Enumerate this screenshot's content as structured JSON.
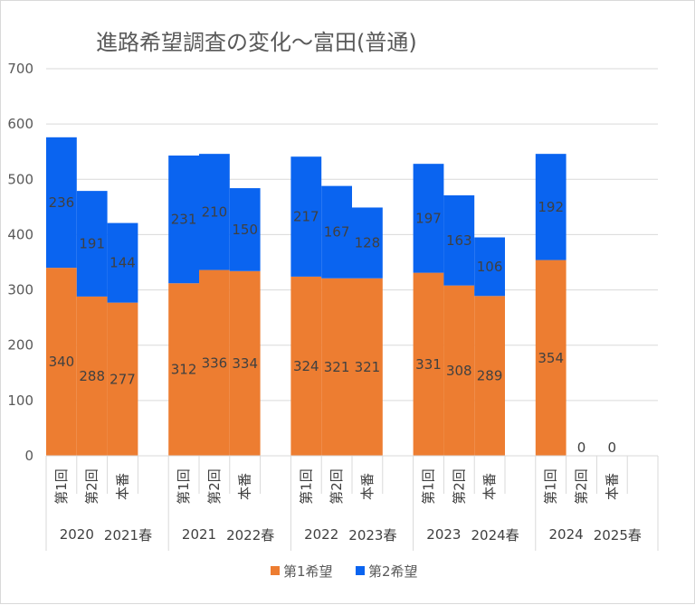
{
  "chart_data": {
    "type": "bar",
    "stacked": true,
    "title": "進路希望調査の変化～富田(普通)",
    "xlabel": "",
    "ylabel": "",
    "ylim": [
      0,
      700
    ],
    "yticks": [
      0,
      100,
      200,
      300,
      400,
      500,
      600,
      700
    ],
    "grid": true,
    "legend_position": "bottom",
    "groups": [
      {
        "year": "2020",
        "spring": "2021春"
      },
      {
        "year": "2021",
        "spring": "2022春"
      },
      {
        "year": "2022",
        "spring": "2023春"
      },
      {
        "year": "2023",
        "spring": "2024春"
      },
      {
        "year": "2024",
        "spring": "2025春"
      }
    ],
    "subcategories": [
      "第1回",
      "第2回",
      "本番"
    ],
    "series": [
      {
        "name": "第1希望",
        "color": "#ED7D31",
        "values": [
          [
            340,
            288,
            277
          ],
          [
            312,
            336,
            334
          ],
          [
            324,
            321,
            321
          ],
          [
            331,
            308,
            289
          ],
          [
            354,
            0,
            0
          ]
        ]
      },
      {
        "name": "第2希望",
        "color": "#0A64F0",
        "values": [
          [
            236,
            191,
            144
          ],
          [
            231,
            210,
            150
          ],
          [
            217,
            167,
            128
          ],
          [
            197,
            163,
            106
          ],
          [
            192,
            0,
            0
          ]
        ]
      }
    ]
  }
}
